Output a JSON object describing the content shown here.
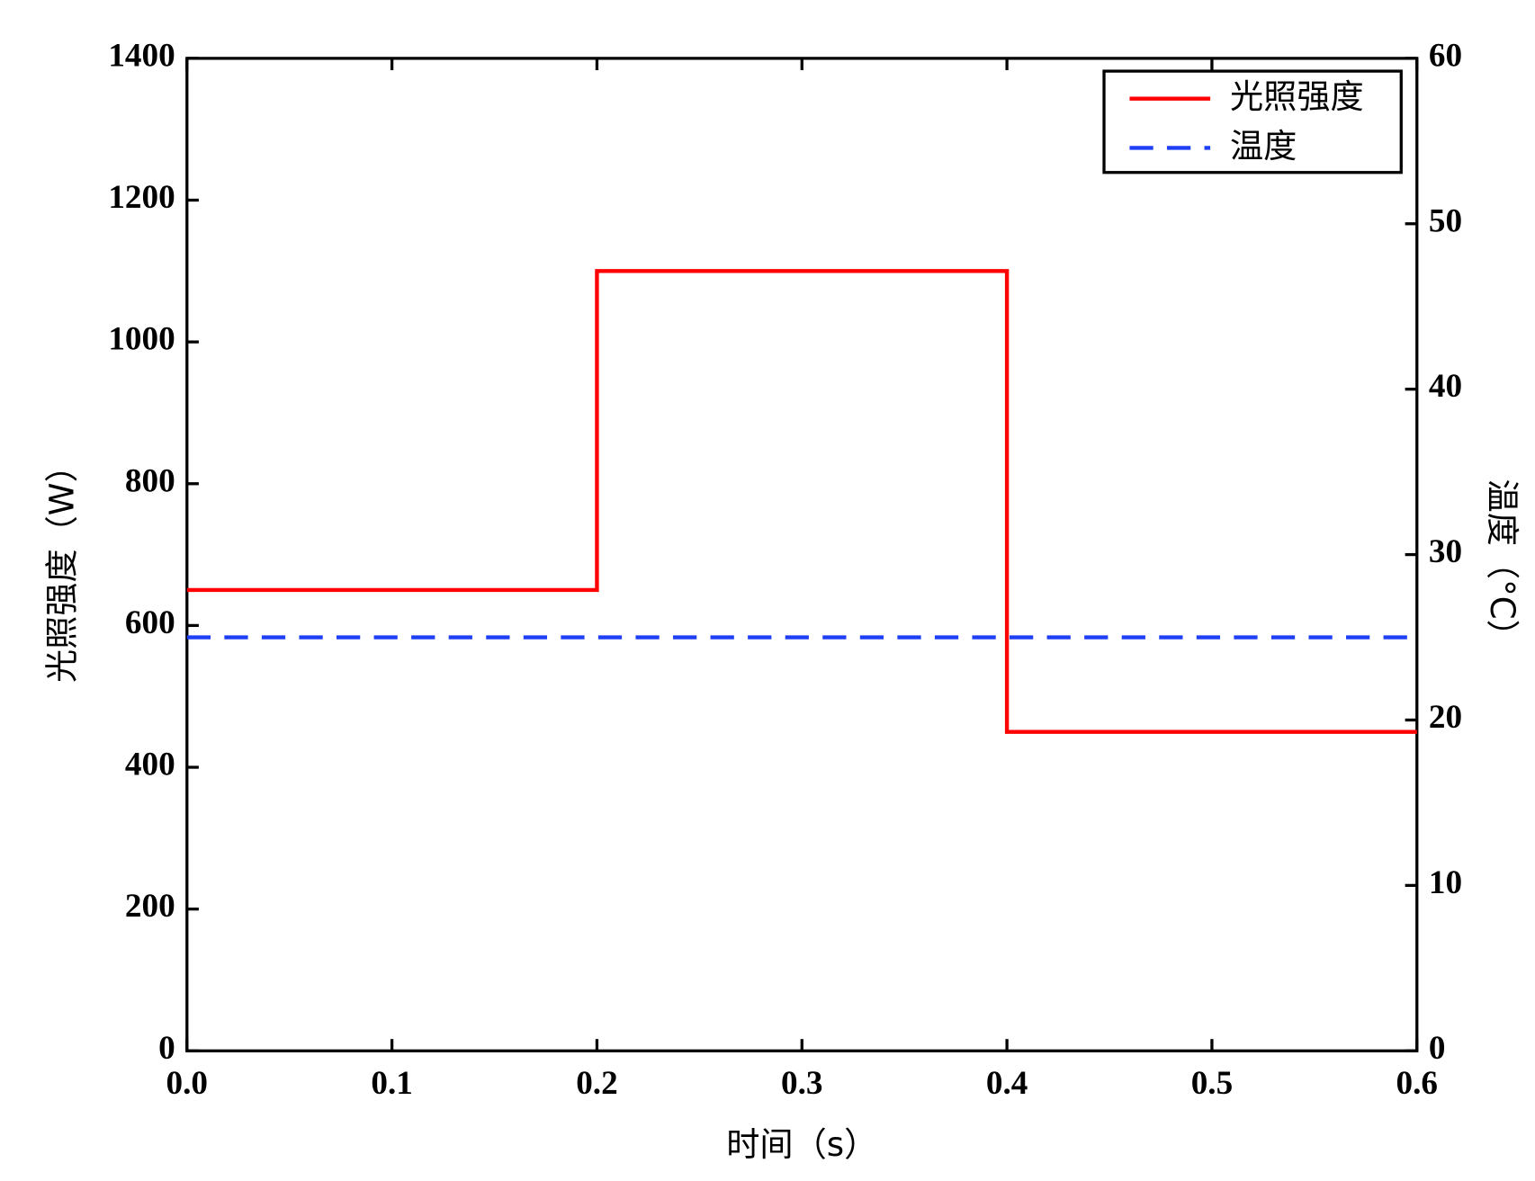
{
  "chart_data": {
    "type": "line",
    "x_label": "时间（s）",
    "y_label": "光照强度（W）",
    "y2_label": "温度（°C）",
    "series": [
      {
        "name": "光照强度",
        "color": "#ff0000",
        "dash": "solid",
        "x": [
          0,
          0.2,
          0.2,
          0.4,
          0.4,
          0.6
        ],
        "values": [
          650,
          650,
          1100,
          1100,
          450,
          450
        ]
      },
      {
        "name": "温度",
        "color": "#1f3ff5",
        "dash": "dashed",
        "axis": "y2",
        "x": [
          0,
          0.6
        ],
        "values": [
          25,
          25
        ]
      }
    ],
    "xlim": [
      0,
      0.6
    ],
    "xticks": [
      {
        "value": 0,
        "label": "0.0"
      },
      0.1,
      0.2,
      0.3,
      0.4,
      0.5,
      0.6
    ],
    "ylim": [
      0,
      1400
    ],
    "yticks": [
      0,
      200,
      400,
      600,
      800,
      1000,
      1200,
      1400
    ],
    "y2lim": [
      0,
      60
    ],
    "y2ticks": [
      0,
      10,
      20,
      30,
      40,
      50,
      60
    ],
    "legend": "upper right",
    "grid": false
  }
}
